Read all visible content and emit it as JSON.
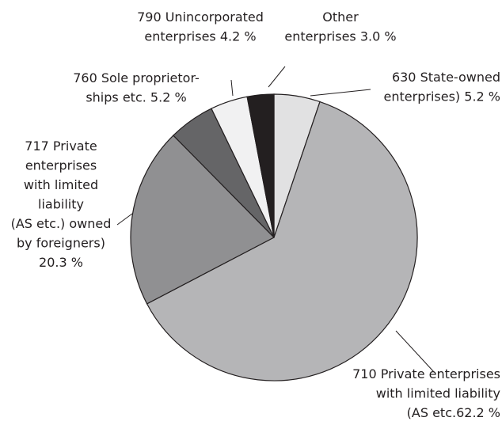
{
  "chart_data": {
    "type": "pie",
    "categories": [
      [
        "630 State-owned",
        "enterprises)"
      ],
      [
        "710 Private enterprises",
        "with limited liability",
        "(AS etc."
      ],
      [
        "717 Private",
        "enterprises",
        "with limited",
        "liability",
        "(AS etc.) owned",
        "by foreigners)"
      ],
      [
        "760 Sole proprietor-",
        "ships etc."
      ],
      [
        "790 Unincorporated",
        "enterprises"
      ],
      [
        "Other",
        "enterprises"
      ]
    ],
    "values": [
      5.2,
      62.2,
      20.3,
      5.2,
      4.2,
      3.0
    ],
    "value_labels": [
      "5.2 %",
      "62.2 %",
      "20.3 %",
      "5.2 %",
      "4.2 %",
      "3.0 %"
    ],
    "colors": [
      "#e1e1e2",
      "#b5b5b7",
      "#909092",
      "#656567",
      "#f1f1f2",
      "#231f20"
    ]
  }
}
